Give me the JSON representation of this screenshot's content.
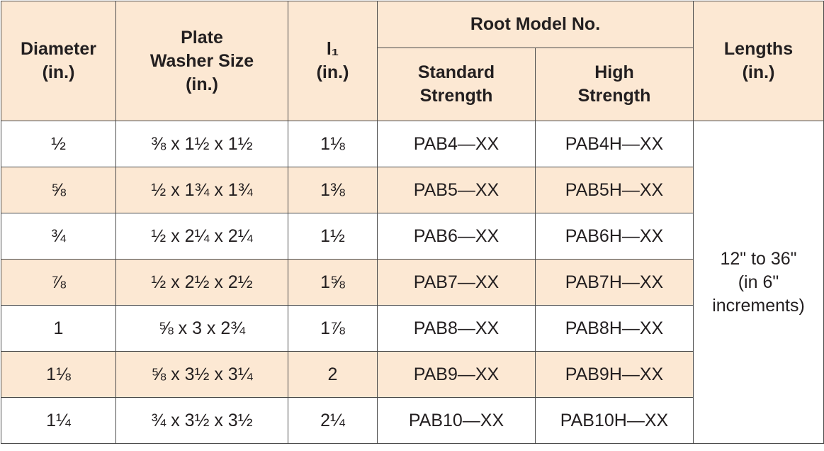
{
  "table": {
    "header": {
      "diameter": [
        "Diameter",
        "(in.)"
      ],
      "washer": [
        "Plate",
        "Washer Size",
        "(in.)"
      ],
      "l1": [
        "l₁",
        "(in.)"
      ],
      "root": "Root Model No.",
      "standard": [
        "Standard",
        "Strength"
      ],
      "high": [
        "High",
        "Strength"
      ],
      "lengths": [
        "Lengths",
        "(in.)"
      ]
    },
    "rows": [
      [
        "½",
        "⅜ x 1½ x 1½",
        "1⅛",
        "PAB4—XX",
        "PAB4H—XX"
      ],
      [
        "⅝",
        "½ x 1¾ x 1¾",
        "1⅜",
        "PAB5—XX",
        "PAB5H—XX"
      ],
      [
        "¾",
        "½ x 2¼ x 2¼",
        "1½",
        "PAB6—XX",
        "PAB6H—XX"
      ],
      [
        "⅞",
        "½ x 2½ x 2½",
        "1⅝",
        "PAB7—XX",
        "PAB7H—XX"
      ],
      [
        "1",
        "⅝ x 3 x 2¾",
        "1⅞",
        "PAB8—XX",
        "PAB8H—XX"
      ],
      [
        "1⅛",
        "⅝ x 3½ x 3¼",
        "2",
        "PAB9—XX",
        "PAB9H—XX"
      ],
      [
        "1¼",
        "¾ x 3½ x 3½",
        "2¼",
        "PAB10—XX",
        "PAB10H—XX"
      ]
    ],
    "lengths": [
      "12\" to 36\"",
      "(in 6\"",
      "increments)"
    ]
  }
}
